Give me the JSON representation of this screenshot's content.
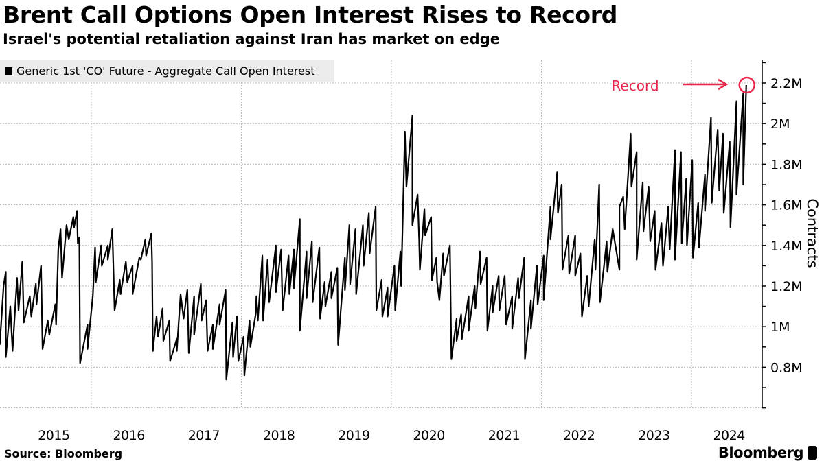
{
  "header": {
    "title": "Brent Call Options Open Interest Rises to Record",
    "subtitle": "Israel's potential retaliation against Iran has market on edge"
  },
  "footer": {
    "source": "Source: Bloomberg",
    "logo": "Bloomberg"
  },
  "colors": {
    "line": "#000000",
    "annotation": "#e8254a",
    "grid": "#bbbbbb",
    "legend_bg": "#ececec"
  },
  "chart_data": {
    "type": "line",
    "title": "Brent Call Options Open Interest Rises to Record",
    "subtitle": "Israel's potential retaliation against Iran has market on edge",
    "xlabel": "",
    "ylabel": "Contracts",
    "ylim": [
      0.6,
      2.31
    ],
    "xlim": [
      2014.78,
      2024.95
    ],
    "yunit": "M",
    "grid": true,
    "legend_position": "top-left",
    "yticks": [
      {
        "value": 0.8,
        "label": "0.8M"
      },
      {
        "value": 1.0,
        "label": "1M"
      },
      {
        "value": 1.2,
        "label": "1.2M"
      },
      {
        "value": 1.4,
        "label": "1.4M"
      },
      {
        "value": 1.6,
        "label": "1.6M"
      },
      {
        "value": 1.8,
        "label": "1.8M"
      },
      {
        "value": 2.0,
        "label": "2M"
      },
      {
        "value": 2.2,
        "label": "2.2M"
      }
    ],
    "xticks": [
      {
        "value": 2015.5,
        "label": "2015"
      },
      {
        "value": 2016.5,
        "label": "2016"
      },
      {
        "value": 2017.5,
        "label": "2017"
      },
      {
        "value": 2018.5,
        "label": "2018"
      },
      {
        "value": 2019.5,
        "label": "2019"
      },
      {
        "value": 2020.5,
        "label": "2020"
      },
      {
        "value": 2021.5,
        "label": "2021"
      },
      {
        "value": 2022.5,
        "label": "2022"
      },
      {
        "value": 2023.5,
        "label": "2023"
      },
      {
        "value": 2024.5,
        "label": "2024"
      }
    ],
    "xgrid": [
      2016,
      2018,
      2020,
      2022,
      2024
    ],
    "annotation": {
      "label": "Record",
      "x": 2024.73,
      "y": 2.19
    },
    "series": [
      {
        "name": "Generic 1st 'CO' Future - Aggregate Call Open Interest",
        "points": [
          [
            2014.78,
            0.91
          ],
          [
            2014.83,
            1.2
          ],
          [
            2014.86,
            1.27
          ],
          [
            2014.86,
            0.85
          ],
          [
            2014.92,
            1.1
          ],
          [
            2014.95,
            0.88
          ],
          [
            2015.01,
            1.24
          ],
          [
            2015.03,
            1.08
          ],
          [
            2015.08,
            1.32
          ],
          [
            2015.1,
            1.02
          ],
          [
            2015.18,
            1.15
          ],
          [
            2015.2,
            1.05
          ],
          [
            2015.26,
            1.21
          ],
          [
            2015.27,
            1.11
          ],
          [
            2015.33,
            1.3
          ],
          [
            2015.35,
            0.89
          ],
          [
            2015.42,
            1.03
          ],
          [
            2015.44,
            0.96
          ],
          [
            2015.52,
            1.11
          ],
          [
            2015.53,
            1.01
          ],
          [
            2015.56,
            1.38
          ],
          [
            2015.59,
            1.48
          ],
          [
            2015.61,
            1.24
          ],
          [
            2015.67,
            1.5
          ],
          [
            2015.7,
            1.43
          ],
          [
            2015.76,
            1.54
          ],
          [
            2015.77,
            1.49
          ],
          [
            2015.81,
            1.57
          ],
          [
            2015.82,
            1.41
          ],
          [
            2015.84,
            1.44
          ],
          [
            2015.85,
            0.82
          ],
          [
            2015.95,
            1.01
          ],
          [
            2015.95,
            0.89
          ],
          [
            2016.02,
            1.15
          ],
          [
            2016.05,
            1.39
          ],
          [
            2016.06,
            1.22
          ],
          [
            2016.13,
            1.4
          ],
          [
            2016.14,
            1.3
          ],
          [
            2016.22,
            1.4
          ],
          [
            2016.22,
            1.33
          ],
          [
            2016.28,
            1.48
          ],
          [
            2016.31,
            1.08
          ],
          [
            2016.38,
            1.23
          ],
          [
            2016.39,
            1.16
          ],
          [
            2016.46,
            1.32
          ],
          [
            2016.48,
            1.22
          ],
          [
            2016.55,
            1.3
          ],
          [
            2016.55,
            1.16
          ],
          [
            2016.64,
            1.34
          ],
          [
            2016.66,
            1.33
          ],
          [
            2016.72,
            1.43
          ],
          [
            2016.73,
            1.35
          ],
          [
            2016.8,
            1.46
          ],
          [
            2016.81,
            1.32
          ],
          [
            2016.82,
            0.88
          ],
          [
            2016.87,
            1.05
          ],
          [
            2016.89,
            0.95
          ],
          [
            2016.95,
            1.09
          ],
          [
            2016.96,
            0.93
          ],
          [
            2017.04,
            1.03
          ],
          [
            2017.05,
            0.83
          ],
          [
            2017.14,
            0.94
          ],
          [
            2017.14,
            0.88
          ],
          [
            2017.19,
            1.16
          ],
          [
            2017.23,
            1.04
          ],
          [
            2017.28,
            1.18
          ],
          [
            2017.3,
            0.87
          ],
          [
            2017.37,
            1.15
          ],
          [
            2017.37,
            0.96
          ],
          [
            2017.46,
            1.21
          ],
          [
            2017.47,
            1.03
          ],
          [
            2017.53,
            1.13
          ],
          [
            2017.55,
            0.88
          ],
          [
            2017.62,
            1.01
          ],
          [
            2017.62,
            0.89
          ],
          [
            2017.71,
            1.11
          ],
          [
            2017.71,
            1.01
          ],
          [
            2017.79,
            1.18
          ],
          [
            2017.8,
            0.74
          ],
          [
            2017.88,
            1.02
          ],
          [
            2017.89,
            0.85
          ],
          [
            2017.94,
            1.05
          ],
          [
            2017.96,
            0.83
          ],
          [
            2018.03,
            0.95
          ],
          [
            2018.04,
            0.76
          ],
          [
            2018.11,
            1.03
          ],
          [
            2018.12,
            0.9
          ],
          [
            2018.19,
            1.06
          ],
          [
            2018.2,
            1.15
          ],
          [
            2018.22,
            1.03
          ],
          [
            2018.28,
            1.35
          ],
          [
            2018.29,
            1.03
          ],
          [
            2018.35,
            1.33
          ],
          [
            2018.37,
            1.12
          ],
          [
            2018.46,
            1.4
          ],
          [
            2018.46,
            1.17
          ],
          [
            2018.53,
            1.38
          ],
          [
            2018.55,
            1.08
          ],
          [
            2018.63,
            1.35
          ],
          [
            2018.64,
            1.16
          ],
          [
            2018.7,
            1.38
          ],
          [
            2018.7,
            1.19
          ],
          [
            2018.78,
            1.53
          ],
          [
            2018.78,
            0.98
          ],
          [
            2018.87,
            1.37
          ],
          [
            2018.87,
            1.14
          ],
          [
            2018.94,
            1.42
          ],
          [
            2018.95,
            1.12
          ],
          [
            2019.04,
            1.39
          ],
          [
            2019.05,
            1.04
          ],
          [
            2019.11,
            1.22
          ],
          [
            2019.12,
            1.1
          ],
          [
            2019.2,
            1.27
          ],
          [
            2019.2,
            1.14
          ],
          [
            2019.28,
            1.29
          ],
          [
            2019.29,
            0.91
          ],
          [
            2019.38,
            1.34
          ],
          [
            2019.38,
            1.18
          ],
          [
            2019.44,
            1.5
          ],
          [
            2019.45,
            1.21
          ],
          [
            2019.52,
            1.48
          ],
          [
            2019.53,
            1.16
          ],
          [
            2019.62,
            1.5
          ],
          [
            2019.63,
            1.3
          ],
          [
            2019.7,
            1.56
          ],
          [
            2019.71,
            1.36
          ],
          [
            2019.79,
            1.59
          ],
          [
            2019.8,
            1.08
          ],
          [
            2019.87,
            1.23
          ],
          [
            2019.88,
            1.05
          ],
          [
            2019.95,
            1.19
          ],
          [
            2019.95,
            1.05
          ],
          [
            2020.04,
            1.3
          ],
          [
            2020.05,
            1.08
          ],
          [
            2020.12,
            1.37
          ],
          [
            2020.13,
            1.2
          ],
          [
            2020.18,
            1.96
          ],
          [
            2020.2,
            1.69
          ],
          [
            2020.28,
            2.04
          ],
          [
            2020.28,
            1.5
          ],
          [
            2020.35,
            1.65
          ],
          [
            2020.37,
            1.43
          ],
          [
            2020.38,
            1.28
          ],
          [
            2020.44,
            1.58
          ],
          [
            2020.45,
            1.45
          ],
          [
            2020.53,
            1.54
          ],
          [
            2020.54,
            1.23
          ],
          [
            2020.6,
            1.34
          ],
          [
            2020.61,
            1.22
          ],
          [
            2020.64,
            1.13
          ],
          [
            2020.69,
            1.36
          ],
          [
            2020.7,
            1.25
          ],
          [
            2020.78,
            1.4
          ],
          [
            2020.8,
            0.84
          ],
          [
            2020.87,
            1.04
          ],
          [
            2020.87,
            0.93
          ],
          [
            2020.93,
            1.06
          ],
          [
            2020.94,
            0.94
          ],
          [
            2021.03,
            1.15
          ],
          [
            2021.03,
            0.98
          ],
          [
            2021.11,
            1.2
          ],
          [
            2021.12,
            1.09
          ],
          [
            2021.18,
            1.37
          ],
          [
            2021.19,
            1.21
          ],
          [
            2021.27,
            1.34
          ],
          [
            2021.28,
            0.98
          ],
          [
            2021.35,
            1.2
          ],
          [
            2021.35,
            1.07
          ],
          [
            2021.43,
            1.25
          ],
          [
            2021.44,
            1.08
          ],
          [
            2021.51,
            1.25
          ],
          [
            2021.53,
            1.01
          ],
          [
            2021.61,
            1.15
          ],
          [
            2021.61,
            0.99
          ],
          [
            2021.69,
            1.24
          ],
          [
            2021.7,
            1.14
          ],
          [
            2021.77,
            1.34
          ],
          [
            2021.78,
            0.84
          ],
          [
            2021.86,
            1.13
          ],
          [
            2021.86,
            0.99
          ],
          [
            2021.94,
            1.3
          ],
          [
            2021.95,
            1.11
          ],
          [
            2022.03,
            1.35
          ],
          [
            2022.03,
            1.13
          ],
          [
            2022.12,
            1.59
          ],
          [
            2022.12,
            1.43
          ],
          [
            2022.21,
            1.76
          ],
          [
            2022.22,
            1.56
          ],
          [
            2022.27,
            1.7
          ],
          [
            2022.28,
            1.28
          ],
          [
            2022.36,
            1.45
          ],
          [
            2022.37,
            1.26
          ],
          [
            2022.45,
            1.45
          ],
          [
            2022.45,
            1.25
          ],
          [
            2022.52,
            1.36
          ],
          [
            2022.54,
            1.05
          ],
          [
            2022.61,
            1.25
          ],
          [
            2022.63,
            1.1
          ],
          [
            2022.71,
            1.43
          ],
          [
            2022.72,
            1.28
          ],
          [
            2022.77,
            1.7
          ],
          [
            2022.78,
            1.12
          ],
          [
            2022.84,
            1.32
          ],
          [
            2022.87,
            1.42
          ],
          [
            2022.88,
            1.27
          ],
          [
            2022.95,
            1.48
          ],
          [
            2023.04,
            1.28
          ],
          [
            2023.04,
            1.59
          ],
          [
            2023.09,
            1.64
          ],
          [
            2023.11,
            1.48
          ],
          [
            2023.19,
            1.95
          ],
          [
            2023.2,
            1.69
          ],
          [
            2023.27,
            1.86
          ],
          [
            2023.27,
            1.33
          ],
          [
            2023.35,
            1.71
          ],
          [
            2023.36,
            1.47
          ],
          [
            2023.43,
            1.69
          ],
          [
            2023.45,
            1.42
          ],
          [
            2023.51,
            1.57
          ],
          [
            2023.52,
            1.28
          ],
          [
            2023.6,
            1.51
          ],
          [
            2023.62,
            1.3
          ],
          [
            2023.69,
            1.59
          ],
          [
            2023.71,
            1.38
          ],
          [
            2023.78,
            1.87
          ],
          [
            2023.78,
            1.33
          ],
          [
            2023.86,
            1.86
          ],
          [
            2023.87,
            1.41
          ],
          [
            2023.93,
            1.73
          ],
          [
            2023.94,
            1.4
          ],
          [
            2024.01,
            1.82
          ],
          [
            2024.02,
            1.34
          ],
          [
            2024.09,
            1.61
          ],
          [
            2024.1,
            1.39
          ],
          [
            2024.18,
            1.75
          ],
          [
            2024.18,
            1.57
          ],
          [
            2024.26,
            2.03
          ],
          [
            2024.27,
            1.61
          ],
          [
            2024.35,
            1.97
          ],
          [
            2024.37,
            1.67
          ],
          [
            2024.42,
            1.95
          ],
          [
            2024.43,
            1.56
          ],
          [
            2024.51,
            1.91
          ],
          [
            2024.52,
            1.49
          ],
          [
            2024.6,
            2.11
          ],
          [
            2024.6,
            1.65
          ],
          [
            2024.69,
            2.15
          ],
          [
            2024.69,
            1.7
          ],
          [
            2024.73,
            2.19
          ]
        ]
      }
    ]
  }
}
